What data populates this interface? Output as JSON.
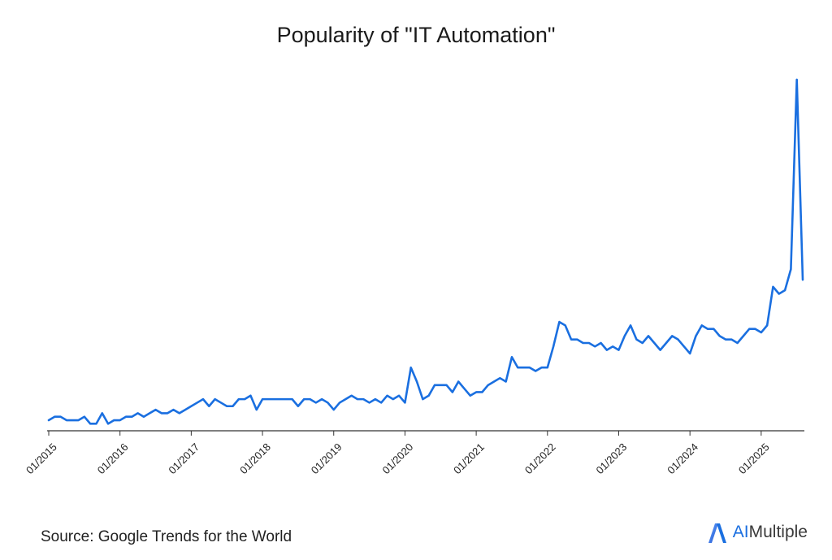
{
  "chart_data": {
    "type": "line",
    "title": "Popularity of \"IT Automation\"",
    "xlabel": "",
    "ylabel": "",
    "x_tick_labels": [
      "01/2015",
      "01/2016",
      "01/2017",
      "01/2018",
      "01/2019",
      "01/2020",
      "01/2021",
      "01/2022",
      "01/2023",
      "01/2024",
      "01/2025"
    ],
    "series": [
      {
        "color": "#1a6fe0",
        "points": [
          [
            "2015-01",
            3
          ],
          [
            "2015-02",
            4
          ],
          [
            "2015-03",
            4
          ],
          [
            "2015-04",
            3
          ],
          [
            "2015-05",
            3
          ],
          [
            "2015-06",
            3
          ],
          [
            "2015-07",
            4
          ],
          [
            "2015-08",
            2
          ],
          [
            "2015-09",
            2
          ],
          [
            "2015-10",
            5
          ],
          [
            "2015-11",
            2
          ],
          [
            "2015-12",
            3
          ],
          [
            "2016-01",
            3
          ],
          [
            "2016-02",
            4
          ],
          [
            "2016-03",
            4
          ],
          [
            "2016-04",
            5
          ],
          [
            "2016-05",
            4
          ],
          [
            "2016-06",
            5
          ],
          [
            "2016-07",
            6
          ],
          [
            "2016-08",
            5
          ],
          [
            "2016-09",
            5
          ],
          [
            "2016-10",
            6
          ],
          [
            "2016-11",
            5
          ],
          [
            "2016-12",
            6
          ],
          [
            "2017-01",
            7
          ],
          [
            "2017-02",
            8
          ],
          [
            "2017-03",
            9
          ],
          [
            "2017-04",
            7
          ],
          [
            "2017-05",
            9
          ],
          [
            "2017-06",
            8
          ],
          [
            "2017-07",
            7
          ],
          [
            "2017-08",
            7
          ],
          [
            "2017-09",
            9
          ],
          [
            "2017-10",
            9
          ],
          [
            "2017-11",
            10
          ],
          [
            "2017-12",
            6
          ],
          [
            "2018-01",
            9
          ],
          [
            "2018-02",
            9
          ],
          [
            "2018-03",
            9
          ],
          [
            "2018-04",
            9
          ],
          [
            "2018-05",
            9
          ],
          [
            "2018-06",
            9
          ],
          [
            "2018-07",
            7
          ],
          [
            "2018-08",
            9
          ],
          [
            "2018-09",
            9
          ],
          [
            "2018-10",
            8
          ],
          [
            "2018-11",
            9
          ],
          [
            "2018-12",
            8
          ],
          [
            "2019-01",
            6
          ],
          [
            "2019-02",
            8
          ],
          [
            "2019-03",
            9
          ],
          [
            "2019-04",
            10
          ],
          [
            "2019-05",
            9
          ],
          [
            "2019-06",
            9
          ],
          [
            "2019-07",
            8
          ],
          [
            "2019-08",
            9
          ],
          [
            "2019-09",
            8
          ],
          [
            "2019-10",
            10
          ],
          [
            "2019-11",
            9
          ],
          [
            "2019-12",
            10
          ],
          [
            "2020-01",
            8
          ],
          [
            "2020-02",
            18
          ],
          [
            "2020-03",
            14
          ],
          [
            "2020-04",
            9
          ],
          [
            "2020-05",
            10
          ],
          [
            "2020-06",
            13
          ],
          [
            "2020-07",
            13
          ],
          [
            "2020-08",
            13
          ],
          [
            "2020-09",
            11
          ],
          [
            "2020-10",
            14
          ],
          [
            "2020-11",
            12
          ],
          [
            "2020-12",
            10
          ],
          [
            "2021-01",
            11
          ],
          [
            "2021-02",
            11
          ],
          [
            "2021-03",
            13
          ],
          [
            "2021-04",
            14
          ],
          [
            "2021-05",
            15
          ],
          [
            "2021-06",
            14
          ],
          [
            "2021-07",
            21
          ],
          [
            "2021-08",
            18
          ],
          [
            "2021-09",
            18
          ],
          [
            "2021-10",
            18
          ],
          [
            "2021-11",
            17
          ],
          [
            "2021-12",
            18
          ],
          [
            "2022-01",
            18
          ],
          [
            "2022-02",
            24
          ],
          [
            "2022-03",
            31
          ],
          [
            "2022-04",
            30
          ],
          [
            "2022-05",
            26
          ],
          [
            "2022-06",
            26
          ],
          [
            "2022-07",
            25
          ],
          [
            "2022-08",
            25
          ],
          [
            "2022-09",
            24
          ],
          [
            "2022-10",
            25
          ],
          [
            "2022-11",
            23
          ],
          [
            "2022-12",
            24
          ],
          [
            "2023-01",
            23
          ],
          [
            "2023-02",
            27
          ],
          [
            "2023-03",
            30
          ],
          [
            "2023-04",
            26
          ],
          [
            "2023-05",
            25
          ],
          [
            "2023-06",
            27
          ],
          [
            "2023-07",
            25
          ],
          [
            "2023-08",
            23
          ],
          [
            "2023-09",
            25
          ],
          [
            "2023-10",
            27
          ],
          [
            "2023-11",
            26
          ],
          [
            "2023-12",
            24
          ],
          [
            "2024-01",
            22
          ],
          [
            "2024-02",
            27
          ],
          [
            "2024-03",
            30
          ],
          [
            "2024-04",
            29
          ],
          [
            "2024-05",
            29
          ],
          [
            "2024-06",
            27
          ],
          [
            "2024-07",
            26
          ],
          [
            "2024-08",
            26
          ],
          [
            "2024-09",
            25
          ],
          [
            "2024-10",
            27
          ],
          [
            "2024-11",
            29
          ],
          [
            "2024-12",
            29
          ],
          [
            "2025-01",
            28
          ],
          [
            "2025-02",
            30
          ],
          [
            "2025-03",
            41
          ],
          [
            "2025-04",
            39
          ],
          [
            "2025-05",
            40
          ],
          [
            "2025-06",
            46
          ],
          [
            "2025-07",
            100
          ],
          [
            "2025-08",
            43
          ]
        ]
      }
    ],
    "ylim": [
      0,
      103
    ],
    "y_axis_visible": false,
    "grid": false
  },
  "footer": {
    "source": "Source: Google Trends for the World"
  },
  "brand": {
    "name_accent": "AI",
    "name_rest": "Multiple",
    "icon": "aimultiple-logo-icon",
    "accent_color": "#1a6fe0"
  }
}
